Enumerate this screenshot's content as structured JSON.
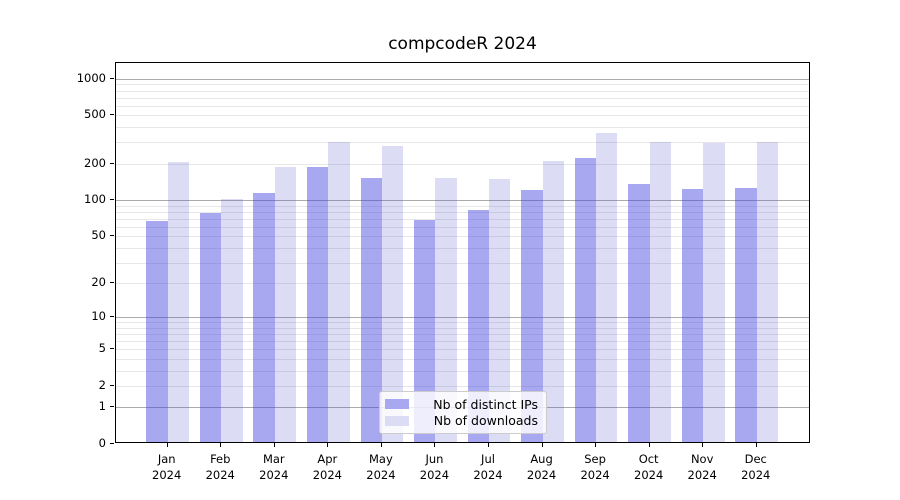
{
  "title": "compcodeR 2024",
  "colors": {
    "distinct_ips_bar": "rgba(62,62,222,0.45)",
    "downloads_bar": "rgba(80,80,205,0.20)",
    "distinct_ips_solid": "#a8a8f0",
    "downloads_solid": "#dcdcf5",
    "grid_major": "#ababab",
    "grid_minor": "#e7e7e7",
    "axis": "#000000"
  },
  "chart_data": {
    "type": "bar",
    "title": "compcodeR 2024",
    "categories": [
      "Jan",
      "Feb",
      "Mar",
      "Apr",
      "May",
      "Jun",
      "Jul",
      "Aug",
      "Sep",
      "Oct",
      "Nov",
      "Dec"
    ],
    "year": "2024",
    "series": [
      {
        "name": "Nb of distinct IPs",
        "values": [
          65,
          75,
          110,
          180,
          146,
          66,
          79,
          116,
          213,
          131,
          118,
          121
        ]
      },
      {
        "name": "Nb of downloads",
        "values": [
          198,
          99,
          181,
          292,
          271,
          146,
          145,
          201,
          348,
          292,
          284,
          290
        ]
      }
    ],
    "xlabel": "",
    "ylabel": "",
    "yscale": "log1p",
    "ylim": [
      0,
      1350
    ],
    "yticks": [
      0,
      1,
      2,
      5,
      10,
      20,
      50,
      100,
      200,
      500,
      1000
    ],
    "grid_major_values": [
      1,
      10,
      100,
      1000
    ],
    "grid_minor_values": [
      2,
      3,
      4,
      5,
      6,
      7,
      8,
      9,
      20,
      30,
      40,
      50,
      60,
      70,
      80,
      90,
      200,
      300,
      400,
      500,
      600,
      700,
      800,
      900
    ],
    "grid": "on",
    "legend_position": "lower center"
  }
}
